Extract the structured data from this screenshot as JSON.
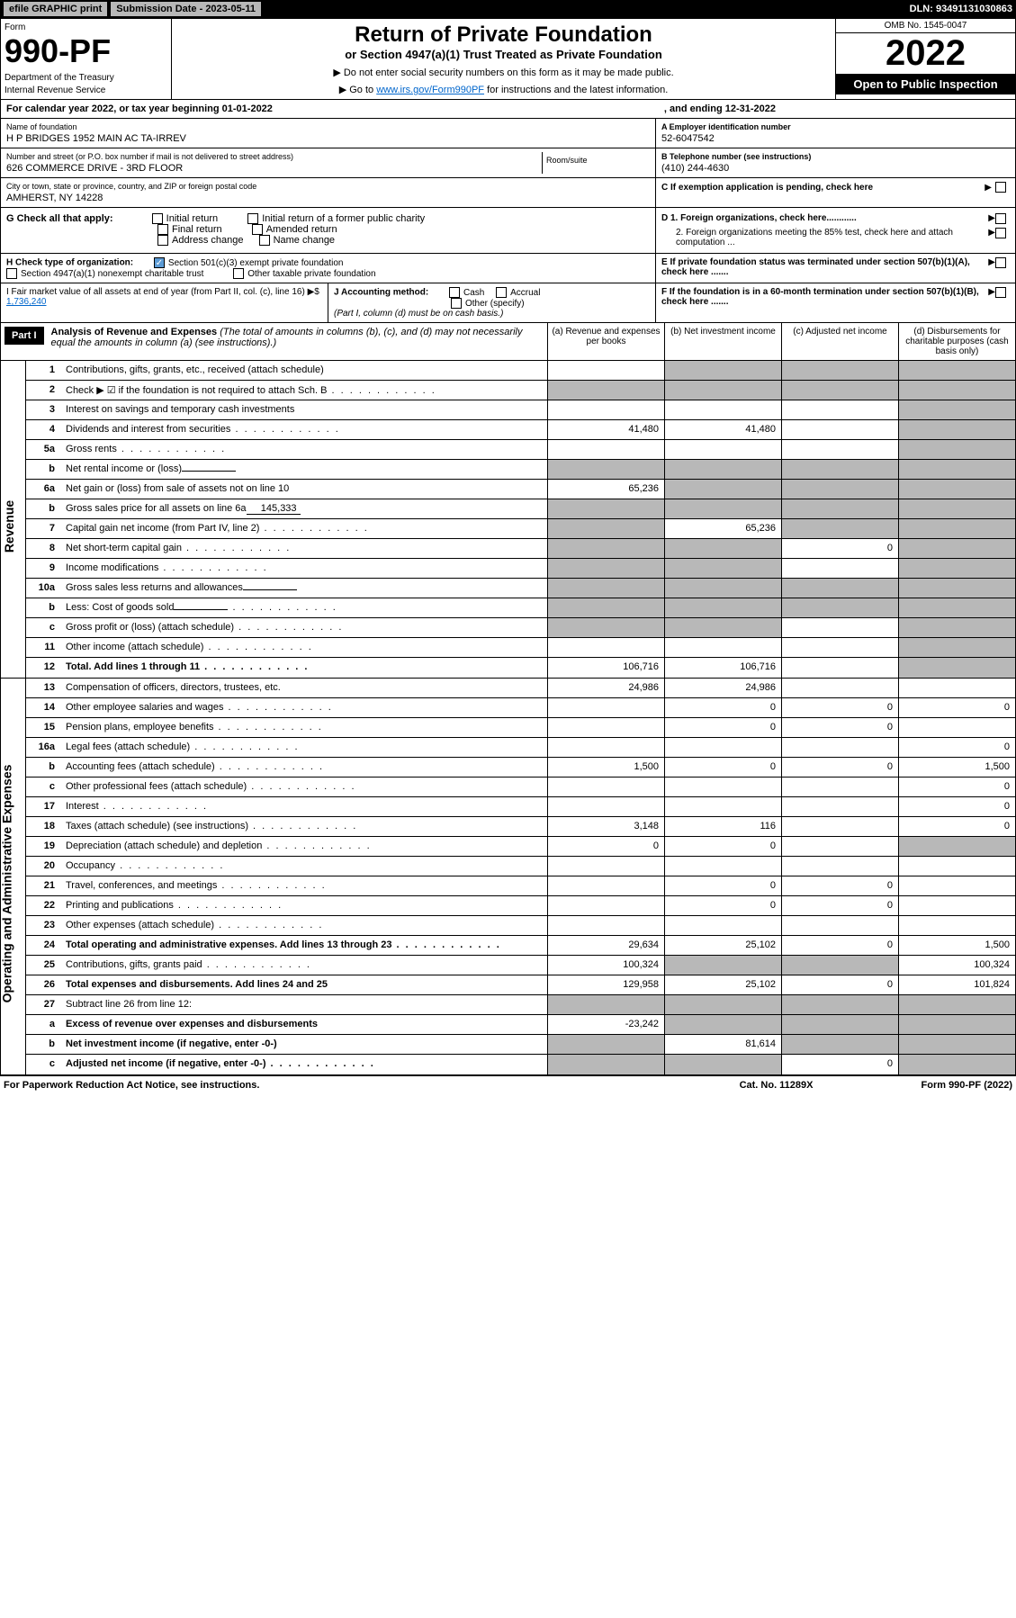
{
  "topbar": {
    "efile": "efile GRAPHIC print",
    "submission": "Submission Date - 2023-05-11",
    "dln": "DLN: 93491131030863"
  },
  "header": {
    "form_label": "Form",
    "form_no": "990-PF",
    "dept1": "Department of the Treasury",
    "dept2": "Internal Revenue Service",
    "title": "Return of Private Foundation",
    "subtitle": "or Section 4947(a)(1) Trust Treated as Private Foundation",
    "note1": "▶ Do not enter social security numbers on this form as it may be made public.",
    "note2_pre": "▶ Go to ",
    "note2_link": "www.irs.gov/Form990PF",
    "note2_post": " for instructions and the latest information.",
    "omb": "OMB No. 1545-0047",
    "year": "2022",
    "open": "Open to Public Inspection"
  },
  "cal": {
    "label": "For calendar year 2022, or tax year beginning 01-01-2022",
    "ending": ", and ending 12-31-2022"
  },
  "entity": {
    "name_lbl": "Name of foundation",
    "name": "H P BRIDGES 1952 MAIN AC TA-IRREV",
    "addr_lbl": "Number and street (or P.O. box number if mail is not delivered to street address)",
    "addr": "626 COMMERCE DRIVE - 3RD FLOOR",
    "room_lbl": "Room/suite",
    "city_lbl": "City or town, state or province, country, and ZIP or foreign postal code",
    "city": "AMHERST, NY  14228",
    "a_lbl": "A Employer identification number",
    "a_val": "52-6047542",
    "b_lbl": "B Telephone number (see instructions)",
    "b_val": "(410) 244-4630",
    "c_lbl": "C If exemption application is pending, check here"
  },
  "g": {
    "label": "G Check all that apply:",
    "opts": [
      "Initial return",
      "Initial return of a former public charity",
      "Final return",
      "Amended return",
      "Address change",
      "Name change"
    ]
  },
  "h": {
    "label": "H Check type of organization:",
    "opt1": "Section 501(c)(3) exempt private foundation",
    "opt2": "Section 4947(a)(1) nonexempt charitable trust",
    "opt3": "Other taxable private foundation"
  },
  "d": {
    "d1": "D 1. Foreign organizations, check here............",
    "d2": "2. Foreign organizations meeting the 85% test, check here and attach computation ...",
    "e": "E  If private foundation status was terminated under section 507(b)(1)(A), check here .......",
    "f": "F  If the foundation is in a 60-month termination under section 507(b)(1)(B), check here ......."
  },
  "i": {
    "label": "I Fair market value of all assets at end of year (from Part II, col. (c), line 16)",
    "val": "1,736,240"
  },
  "j": {
    "label": "J Accounting method:",
    "cash": "Cash",
    "accrual": "Accrual",
    "other": "Other (specify)",
    "note": "(Part I, column (d) must be on cash basis.)"
  },
  "part1": {
    "num": "Part I",
    "title": "Analysis of Revenue and Expenses",
    "sub": " (The total of amounts in columns (b), (c), and (d) may not necessarily equal the amounts in column (a) (see instructions).)",
    "col_a": "(a)   Revenue and expenses per books",
    "col_b": "(b)   Net investment income",
    "col_c": "(c)   Adjusted net income",
    "col_d": "(d)   Disbursements for charitable purposes (cash basis only)"
  },
  "sides": {
    "rev": "Revenue",
    "exp": "Operating and Administrative Expenses"
  },
  "rows": [
    {
      "n": "1",
      "l": "Contributions, gifts, grants, etc., received (attach schedule)",
      "a": "",
      "b": "g",
      "c": "g",
      "d": "g"
    },
    {
      "n": "2",
      "l": "Check ▶ ☑ if the foundation is not required to attach Sch. B",
      "dots": true,
      "a": "g",
      "b": "g",
      "c": "g",
      "d": "g",
      "bold": false
    },
    {
      "n": "3",
      "l": "Interest on savings and temporary cash investments",
      "a": "",
      "b": "",
      "c": "",
      "d": "g"
    },
    {
      "n": "4",
      "l": "Dividends and interest from securities",
      "dots": true,
      "a": "41,480",
      "b": "41,480",
      "c": "",
      "d": "g"
    },
    {
      "n": "5a",
      "l": "Gross rents",
      "dots": true,
      "a": "",
      "b": "",
      "c": "",
      "d": "g"
    },
    {
      "n": "b",
      "l": "Net rental income or (loss)",
      "sub": "",
      "a": "g",
      "b": "g",
      "c": "g",
      "d": "g"
    },
    {
      "n": "6a",
      "l": "Net gain or (loss) from sale of assets not on line 10",
      "a": "65,236",
      "b": "g",
      "c": "g",
      "d": "g"
    },
    {
      "n": "b",
      "l": "Gross sales price for all assets on line 6a",
      "sub": "145,333",
      "a": "g",
      "b": "g",
      "c": "g",
      "d": "g"
    },
    {
      "n": "7",
      "l": "Capital gain net income (from Part IV, line 2)",
      "dots": true,
      "a": "g",
      "b": "65,236",
      "c": "g",
      "d": "g"
    },
    {
      "n": "8",
      "l": "Net short-term capital gain",
      "dots": true,
      "a": "g",
      "b": "g",
      "c": "0",
      "d": "g"
    },
    {
      "n": "9",
      "l": "Income modifications",
      "dots": true,
      "a": "g",
      "b": "g",
      "c": "",
      "d": "g"
    },
    {
      "n": "10a",
      "l": "Gross sales less returns and allowances",
      "sub": "",
      "a": "g",
      "b": "g",
      "c": "g",
      "d": "g"
    },
    {
      "n": "b",
      "l": "Less: Cost of goods sold",
      "dots": true,
      "sub": "",
      "a": "g",
      "b": "g",
      "c": "g",
      "d": "g"
    },
    {
      "n": "c",
      "l": "Gross profit or (loss) (attach schedule)",
      "dots": true,
      "a": "g",
      "b": "g",
      "c": "",
      "d": "g"
    },
    {
      "n": "11",
      "l": "Other income (attach schedule)",
      "dots": true,
      "a": "",
      "b": "",
      "c": "",
      "d": "g"
    },
    {
      "n": "12",
      "l": "Total. Add lines 1 through 11",
      "dots": true,
      "bold": true,
      "a": "106,716",
      "b": "106,716",
      "c": "",
      "d": "g"
    }
  ],
  "exp_rows": [
    {
      "n": "13",
      "l": "Compensation of officers, directors, trustees, etc.",
      "a": "24,986",
      "b": "24,986",
      "c": "",
      "d": ""
    },
    {
      "n": "14",
      "l": "Other employee salaries and wages",
      "dots": true,
      "a": "",
      "b": "0",
      "c": "0",
      "d": "0"
    },
    {
      "n": "15",
      "l": "Pension plans, employee benefits",
      "dots": true,
      "a": "",
      "b": "0",
      "c": "0",
      "d": ""
    },
    {
      "n": "16a",
      "l": "Legal fees (attach schedule)",
      "dots": true,
      "a": "",
      "b": "",
      "c": "",
      "d": "0"
    },
    {
      "n": "b",
      "l": "Accounting fees (attach schedule)",
      "dots": true,
      "a": "1,500",
      "b": "0",
      "c": "0",
      "d": "1,500"
    },
    {
      "n": "c",
      "l": "Other professional fees (attach schedule)",
      "dots": true,
      "a": "",
      "b": "",
      "c": "",
      "d": "0"
    },
    {
      "n": "17",
      "l": "Interest",
      "dots": true,
      "a": "",
      "b": "",
      "c": "",
      "d": "0"
    },
    {
      "n": "18",
      "l": "Taxes (attach schedule) (see instructions)",
      "dots": true,
      "a": "3,148",
      "b": "116",
      "c": "",
      "d": "0"
    },
    {
      "n": "19",
      "l": "Depreciation (attach schedule) and depletion",
      "dots": true,
      "a": "0",
      "b": "0",
      "c": "",
      "d": "g"
    },
    {
      "n": "20",
      "l": "Occupancy",
      "dots": true,
      "a": "",
      "b": "",
      "c": "",
      "d": ""
    },
    {
      "n": "21",
      "l": "Travel, conferences, and meetings",
      "dots": true,
      "a": "",
      "b": "0",
      "c": "0",
      "d": ""
    },
    {
      "n": "22",
      "l": "Printing and publications",
      "dots": true,
      "a": "",
      "b": "0",
      "c": "0",
      "d": ""
    },
    {
      "n": "23",
      "l": "Other expenses (attach schedule)",
      "dots": true,
      "a": "",
      "b": "",
      "c": "",
      "d": ""
    },
    {
      "n": "24",
      "l": "Total operating and administrative expenses. Add lines 13 through 23",
      "dots": true,
      "bold": true,
      "a": "29,634",
      "b": "25,102",
      "c": "0",
      "d": "1,500"
    },
    {
      "n": "25",
      "l": "Contributions, gifts, grants paid",
      "dots": true,
      "a": "100,324",
      "b": "g",
      "c": "g",
      "d": "100,324"
    },
    {
      "n": "26",
      "l": "Total expenses and disbursements. Add lines 24 and 25",
      "bold": true,
      "a": "129,958",
      "b": "25,102",
      "c": "0",
      "d": "101,824"
    },
    {
      "n": "27",
      "l": "Subtract line 26 from line 12:",
      "a": "g",
      "b": "g",
      "c": "g",
      "d": "g"
    },
    {
      "n": "a",
      "l": "Excess of revenue over expenses and disbursements",
      "bold": true,
      "a": "-23,242",
      "b": "g",
      "c": "g",
      "d": "g"
    },
    {
      "n": "b",
      "l": "Net investment income (if negative, enter -0-)",
      "bold": true,
      "a": "g",
      "b": "81,614",
      "c": "g",
      "d": "g"
    },
    {
      "n": "c",
      "l": "Adjusted net income (if negative, enter -0-)",
      "dots": true,
      "bold": true,
      "a": "g",
      "b": "g",
      "c": "0",
      "d": "g"
    }
  ],
  "footer": {
    "left": "For Paperwork Reduction Act Notice, see instructions.",
    "mid": "Cat. No. 11289X",
    "right": "Form 990-PF (2022)"
  }
}
